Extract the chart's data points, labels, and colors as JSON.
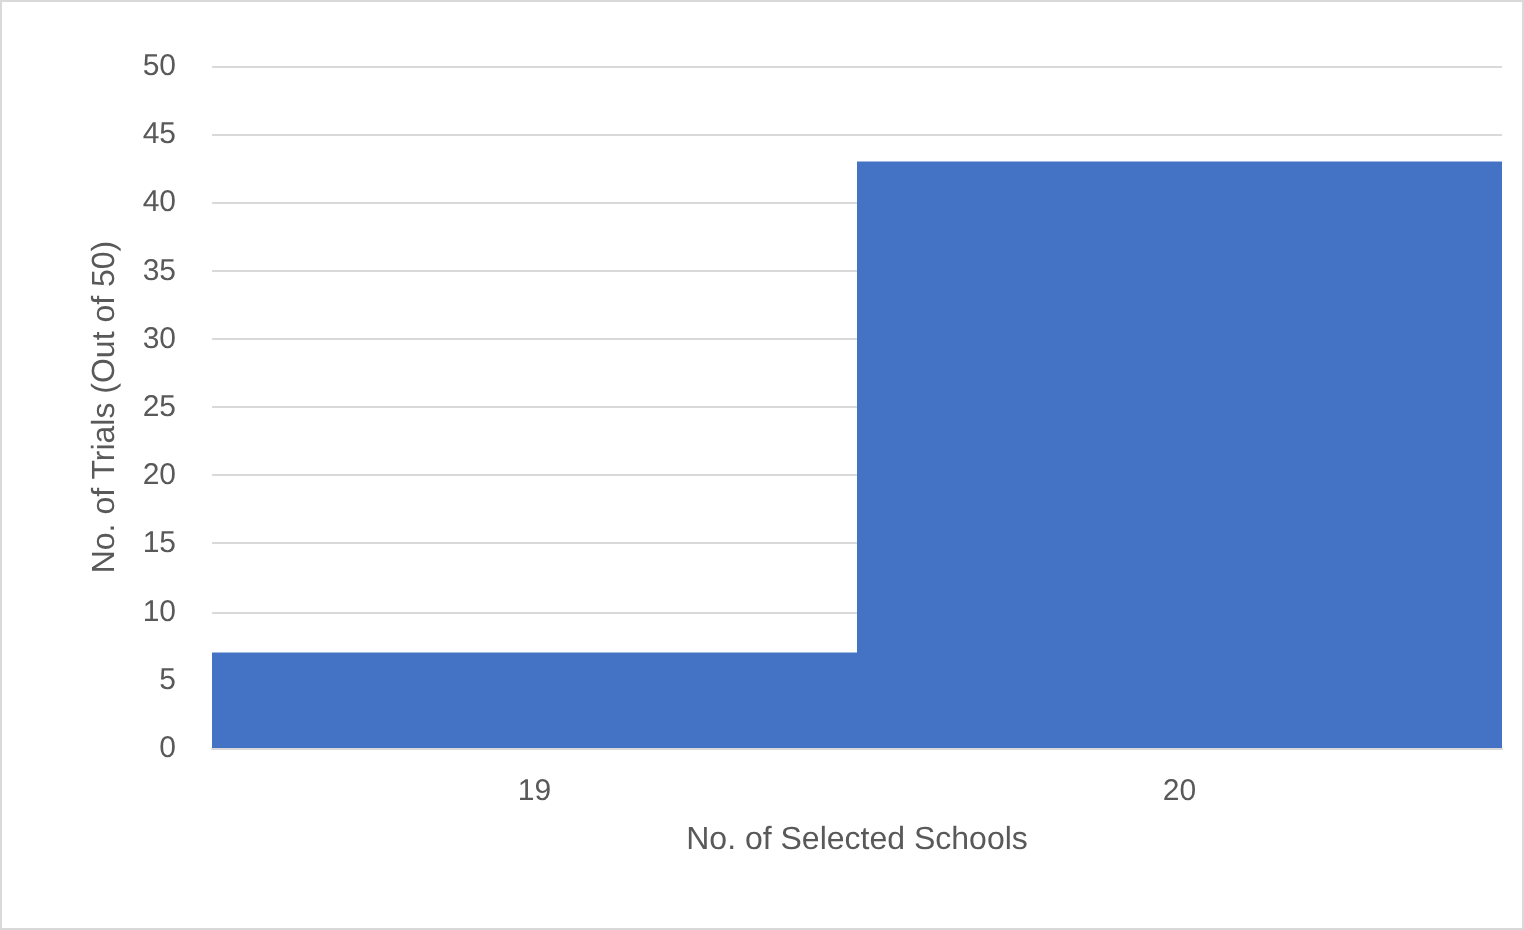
{
  "chart_data": {
    "type": "bar",
    "xlabel": "No. of Selected Schools",
    "ylabel": "No. of Trials (Out of 50)",
    "categories": [
      "19",
      "20"
    ],
    "values": [
      7,
      43
    ],
    "color": "#4472c4",
    "ylim": [
      0,
      50
    ],
    "yticks": [
      0,
      5,
      10,
      15,
      20,
      25,
      30,
      35,
      40,
      45,
      50
    ],
    "grid": "y"
  }
}
